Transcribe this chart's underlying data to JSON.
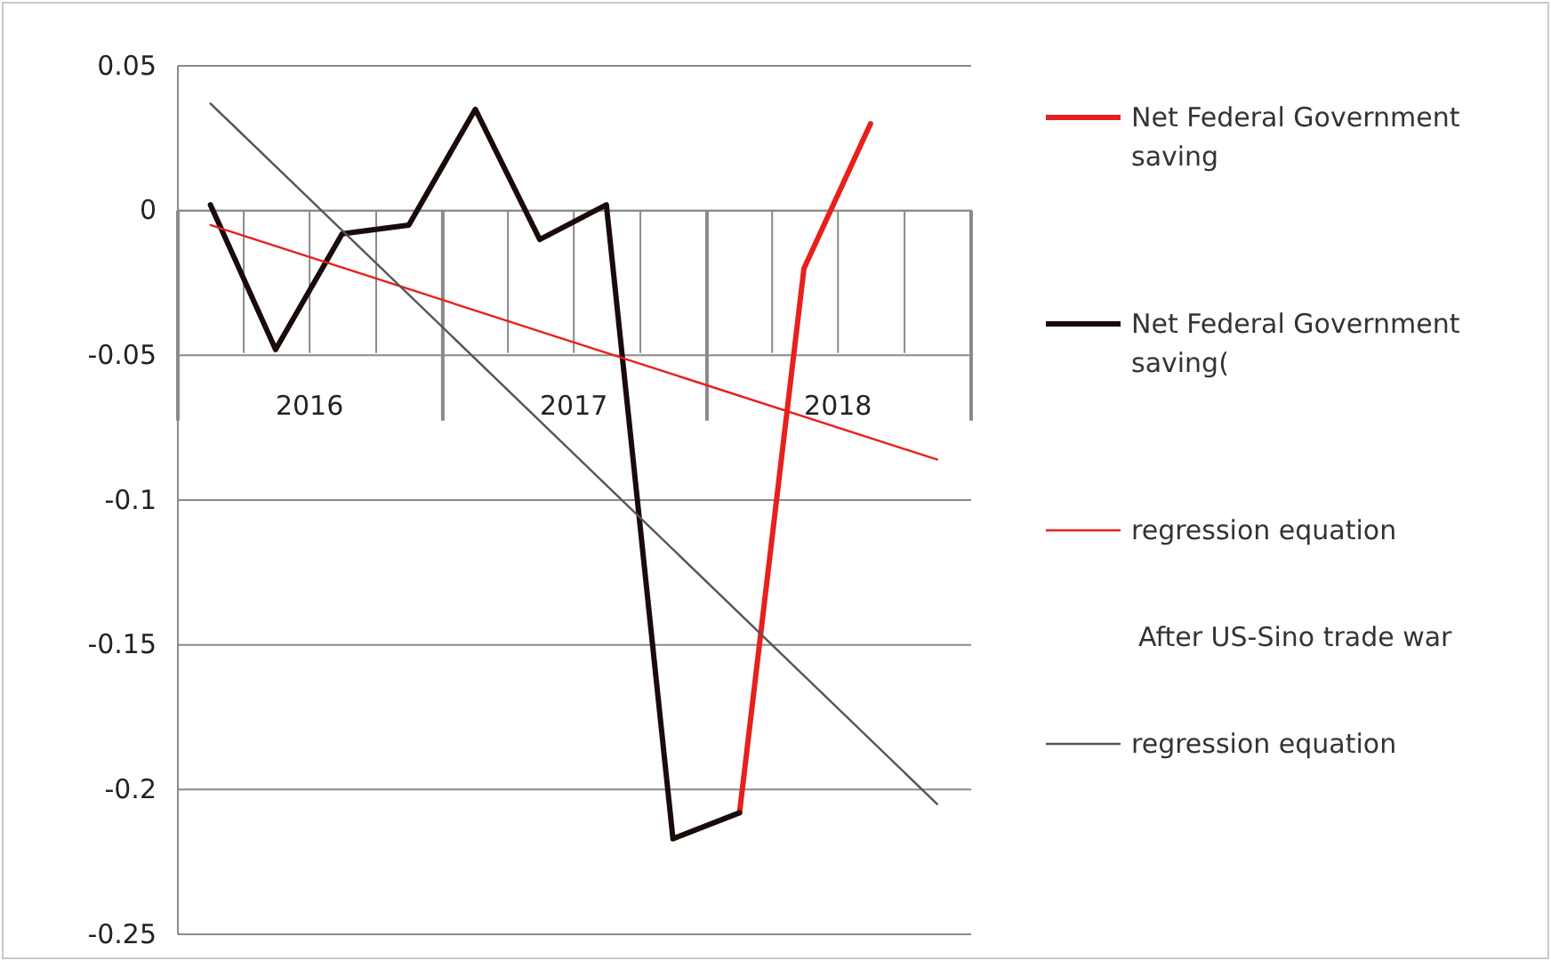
{
  "chart_data": {
    "type": "line",
    "x": [
      "2016-02-15",
      "2016-05-15",
      "2016-08-15",
      "2016-11-15",
      "2017-02-15",
      "2017-05-15",
      "2017-08-15",
      "2017-11-15",
      "2018-02-15",
      "2018-05-15",
      "2018-08-15"
    ],
    "xlim": [
      "2016-01-01",
      "2019-01-01"
    ],
    "xticks": [
      {
        "value": "2016-07-01",
        "label": "2016"
      },
      {
        "value": "2017-07-01",
        "label": "2017"
      },
      {
        "value": "2018-07-01",
        "label": "2018"
      }
    ],
    "ylim": [
      -0.25,
      0.05
    ],
    "yticks": [
      0.05,
      0,
      -0.05,
      -0.1,
      -0.15,
      -0.2,
      -0.25
    ],
    "grid": "y",
    "legend": "right",
    "series": [
      {
        "name": "Net Federal Government saving",
        "color": "#e8201c",
        "values": [
          null,
          null,
          null,
          null,
          null,
          null,
          null,
          null,
          -0.208,
          -0.02,
          0.03
        ]
      },
      {
        "name": "Net Federal Government saving(",
        "color": "#1a0a0a",
        "values": [
          0.002,
          -0.048,
          -0.008,
          -0.005,
          0.035,
          -0.01,
          0.002,
          -0.217,
          -0.208,
          null,
          null
        ]
      },
      {
        "name": "regression equation",
        "color": "#e8201c",
        "x": [
          "2016-02-15",
          "2018-11-15"
        ],
        "values": [
          -0.005,
          -0.086
        ]
      },
      {
        "name": "regression equation",
        "color": "#555555",
        "x": [
          "2016-02-15",
          "2018-11-15"
        ],
        "values": [
          0.037,
          -0.205
        ]
      }
    ],
    "annotations": [
      "After US-Sino trade war"
    ]
  }
}
